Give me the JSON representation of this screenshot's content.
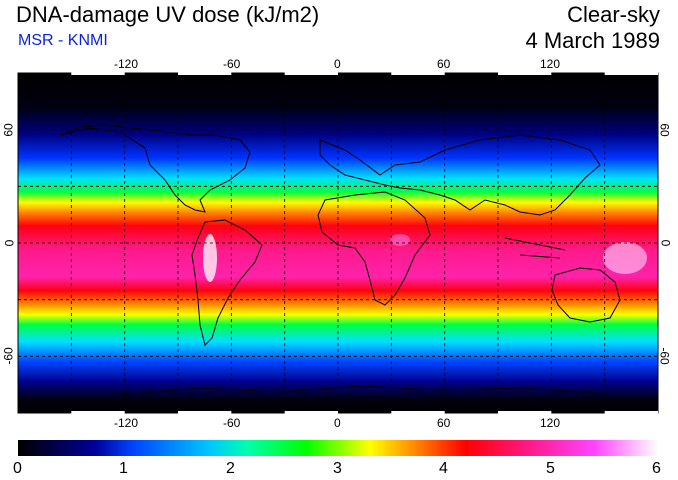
{
  "header": {
    "title": "DNA-damage UV dose (kJ/m2)",
    "subtitle": "MSR - KNMI",
    "condition": "Clear-sky",
    "date": "4 March 1989"
  },
  "map": {
    "lon_ticks_top": [
      "-120",
      "-60",
      "0",
      "60",
      "120"
    ],
    "lon_ticks_bottom": [
      "-120",
      "-60",
      "0",
      "60",
      "120"
    ],
    "lat_ticks_left": [
      "60",
      "0",
      "-60"
    ],
    "lat_ticks_right": [
      "60",
      "0",
      "-60"
    ],
    "lon_values": [
      -120,
      -60,
      0,
      60,
      120
    ],
    "lat_values": [
      60,
      0,
      -60
    ],
    "gridlines": "dashed every 30 degrees"
  },
  "colorbar": {
    "min": 0,
    "max": 6,
    "tick_labels": [
      "0",
      "1",
      "2",
      "3",
      "4",
      "5",
      "6"
    ],
    "colors": [
      "#000000",
      "#0000cc",
      "#0066ff",
      "#00ffff",
      "#00ff00",
      "#ffff00",
      "#ff8800",
      "#ff0000",
      "#ff1a8a",
      "#ff33ff",
      "#ffffff"
    ]
  }
}
